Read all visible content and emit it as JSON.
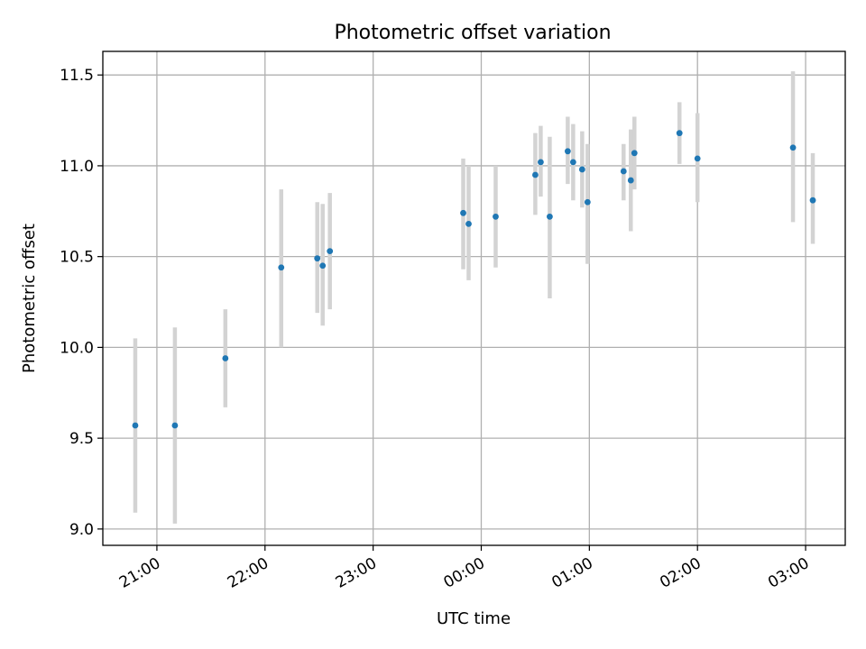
{
  "chart_data": {
    "type": "scatter",
    "title": "Photometric offset variation",
    "xlabel": "UTC time",
    "ylabel": "Photometric offset",
    "x_axis": "time",
    "xlim": [
      "20:30",
      "03:22"
    ],
    "ylim": [
      8.91,
      11.63
    ],
    "x_ticks": [
      "21:00",
      "22:00",
      "23:00",
      "00:00",
      "01:00",
      "02:00",
      "03:00"
    ],
    "y_ticks": [
      9.0,
      9.5,
      10.0,
      10.5,
      11.0,
      11.5
    ],
    "y_tick_labels": [
      "9.0",
      "9.5",
      "10.0",
      "10.5",
      "11.0",
      "11.5"
    ],
    "grid": true,
    "marker_color": "#1f77b4",
    "errorbar_color": "#d3d3d3",
    "points": [
      {
        "x": "20:48",
        "y": 9.57,
        "ylow": 9.09,
        "yhigh": 10.05
      },
      {
        "x": "21:10",
        "y": 9.57,
        "ylow": 9.03,
        "yhigh": 10.11
      },
      {
        "x": "21:38",
        "y": 9.94,
        "ylow": 9.67,
        "yhigh": 10.21
      },
      {
        "x": "22:09",
        "y": 10.44,
        "ylow": 10.0,
        "yhigh": 10.87
      },
      {
        "x": "22:29",
        "y": 10.49,
        "ylow": 10.19,
        "yhigh": 10.8
      },
      {
        "x": "22:32",
        "y": 10.45,
        "ylow": 10.12,
        "yhigh": 10.79
      },
      {
        "x": "22:36",
        "y": 10.53,
        "ylow": 10.21,
        "yhigh": 10.85
      },
      {
        "x": "23:50",
        "y": 10.74,
        "ylow": 10.43,
        "yhigh": 11.04
      },
      {
        "x": "23:53",
        "y": 10.68,
        "ylow": 10.37,
        "yhigh": 11.0
      },
      {
        "x": "00:08",
        "y": 10.72,
        "ylow": 10.44,
        "yhigh": 11.0
      },
      {
        "x": "00:30",
        "y": 10.95,
        "ylow": 10.73,
        "yhigh": 11.18
      },
      {
        "x": "00:33",
        "y": 11.02,
        "ylow": 10.83,
        "yhigh": 11.22
      },
      {
        "x": "00:38",
        "y": 10.72,
        "ylow": 10.27,
        "yhigh": 11.16
      },
      {
        "x": "00:48",
        "y": 11.08,
        "ylow": 10.9,
        "yhigh": 11.27
      },
      {
        "x": "00:51",
        "y": 11.02,
        "ylow": 10.81,
        "yhigh": 11.23
      },
      {
        "x": "00:56",
        "y": 10.98,
        "ylow": 10.77,
        "yhigh": 11.19
      },
      {
        "x": "00:59",
        "y": 10.8,
        "ylow": 10.46,
        "yhigh": 11.12
      },
      {
        "x": "01:19",
        "y": 10.97,
        "ylow": 10.81,
        "yhigh": 11.12
      },
      {
        "x": "01:23",
        "y": 10.92,
        "ylow": 10.64,
        "yhigh": 11.2
      },
      {
        "x": "01:25",
        "y": 11.07,
        "ylow": 10.87,
        "yhigh": 11.27
      },
      {
        "x": "01:50",
        "y": 11.18,
        "ylow": 11.01,
        "yhigh": 11.35
      },
      {
        "x": "02:00",
        "y": 11.04,
        "ylow": 10.8,
        "yhigh": 11.29
      },
      {
        "x": "02:53",
        "y": 11.1,
        "ylow": 10.69,
        "yhigh": 11.52
      },
      {
        "x": "03:04",
        "y": 10.81,
        "ylow": 10.57,
        "yhigh": 11.07
      }
    ]
  }
}
